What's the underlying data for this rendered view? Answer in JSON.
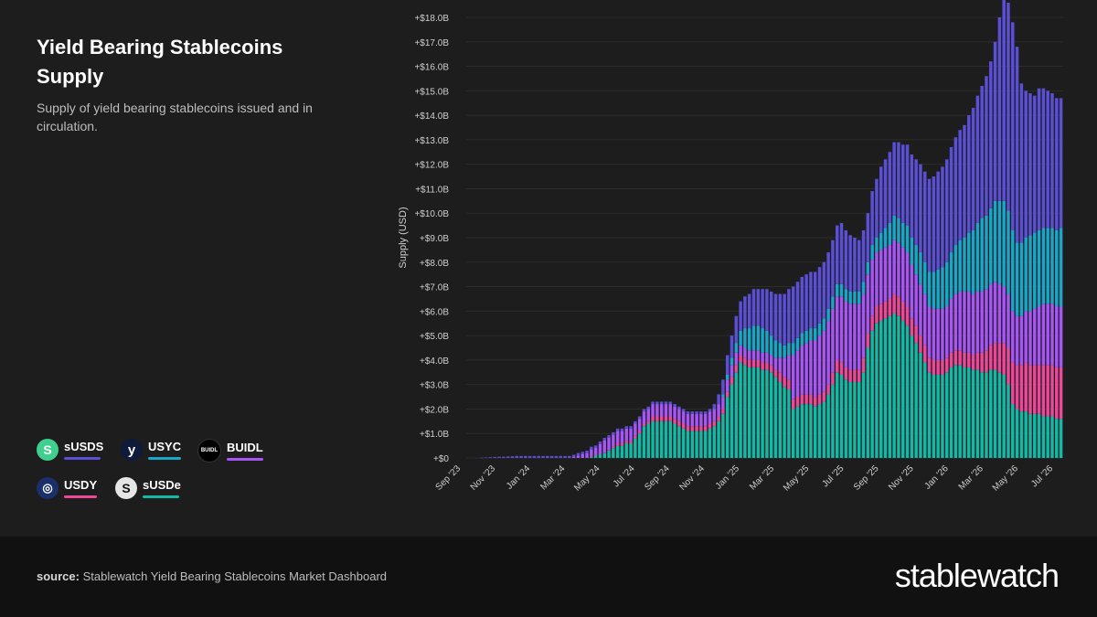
{
  "title": "Yield Bearing Stablecoins Supply",
  "subtitle": "Supply of yield bearing stablecoins issued and in circulation.",
  "legend": [
    {
      "label": "sUSDS",
      "icon": "susds-icon",
      "icon_text": "S",
      "icon_bg": "#3fcf8e",
      "color": "#5b4fd6"
    },
    {
      "label": "USYC",
      "icon": "usyc-icon",
      "icon_text": "y",
      "icon_bg": "#0e1b3a",
      "color": "#1aa6c8"
    },
    {
      "label": "BUIDL",
      "icon": "buidl-icon",
      "icon_text": "BUIDL",
      "icon_bg": "#000000",
      "color": "#a855f7"
    },
    {
      "label": "USDY",
      "icon": "usdy-icon",
      "icon_text": "◎",
      "icon_bg": "#1b2f6b",
      "color": "#ec4899"
    },
    {
      "label": "sUSDe",
      "icon": "susde-icon",
      "icon_text": "S",
      "icon_bg": "#e5e5e5",
      "color": "#14b8a6"
    }
  ],
  "footer": {
    "source_label": "source:",
    "source_text": "Stablewatch Yield Bearing Stablecoins Market Dashboard",
    "brand": "stablewatch"
  },
  "chart_data": {
    "type": "bar",
    "stacked": true,
    "ylabel": "Supply (USD)",
    "ylim": [
      0,
      18
    ],
    "yunit": "B",
    "yticks": [
      "+$0",
      "+$1.0B",
      "+$2.0B",
      "+$3.0B",
      "+$4.0B",
      "+$5.0B",
      "+$6.0B",
      "+$7.0B",
      "+$8.0B",
      "+$9.0B",
      "+$10.0B",
      "+$11.0B",
      "+$12.0B",
      "+$13.0B",
      "+$14.0B",
      "+$15.0B",
      "+$16.0B",
      "+$17.0B",
      "+$18.0B"
    ],
    "xticks": [
      "Sep '23",
      "Nov '23",
      "Jan '24",
      "Mar '24",
      "May '24",
      "Jul '24",
      "Sep '24",
      "Nov '24",
      "Jan '25",
      "Mar '25",
      "May '25",
      "Jul '25",
      "Sep '25",
      "Nov '25",
      "Jan '26",
      "Mar '26",
      "May '26",
      "Jul '26"
    ],
    "grid": true,
    "series_order": [
      "sUSDe",
      "USDY",
      "BUIDL",
      "USYC",
      "sUSDS"
    ],
    "series": {
      "sUSDe": [
        0,
        0,
        0,
        0,
        0,
        0,
        0,
        0,
        0,
        0,
        0,
        0,
        0,
        0,
        0,
        0,
        0,
        0,
        0,
        0,
        0,
        0,
        0,
        0,
        0,
        0,
        0,
        0,
        0.05,
        0.1,
        0.15,
        0.2,
        0.3,
        0.4,
        0.5,
        0.5,
        0.6,
        0.6,
        0.8,
        1.0,
        1.3,
        1.4,
        1.5,
        1.5,
        1.5,
        1.5,
        1.5,
        1.4,
        1.3,
        1.2,
        1.1,
        1.1,
        1.1,
        1.1,
        1.1,
        1.2,
        1.3,
        1.5,
        1.8,
        2.5,
        3.0,
        3.5,
        3.9,
        3.8,
        3.7,
        3.7,
        3.7,
        3.6,
        3.6,
        3.5,
        3.3,
        3.1,
        2.9,
        2.8,
        2.0,
        2.1,
        2.2,
        2.2,
        2.2,
        2.1,
        2.2,
        2.3,
        2.6,
        3.0,
        3.5,
        3.4,
        3.2,
        3.1,
        3.1,
        3.1,
        3.5,
        4.5,
        5.2,
        5.5,
        5.6,
        5.7,
        5.8,
        5.9,
        5.8,
        5.6,
        5.4,
        5.0,
        4.7,
        4.3,
        3.9,
        3.5,
        3.4,
        3.4,
        3.4,
        3.5,
        3.7,
        3.8,
        3.8,
        3.7,
        3.7,
        3.6,
        3.6,
        3.5,
        3.5,
        3.6,
        3.6,
        3.5,
        3.4,
        3.0,
        2.2,
        2.0,
        1.9,
        1.9,
        1.8,
        1.8,
        1.8,
        1.7,
        1.7,
        1.7,
        1.6,
        1.6
      ],
      "USDY": [
        0,
        0,
        0,
        0,
        0,
        0,
        0,
        0,
        0,
        0,
        0,
        0,
        0,
        0,
        0,
        0,
        0,
        0,
        0,
        0,
        0,
        0,
        0,
        0,
        0,
        0,
        0,
        0,
        0.01,
        0.01,
        0.02,
        0.02,
        0.03,
        0.05,
        0.1,
        0.1,
        0.1,
        0.1,
        0.1,
        0.1,
        0.1,
        0.1,
        0.2,
        0.2,
        0.2,
        0.2,
        0.2,
        0.2,
        0.2,
        0.2,
        0.2,
        0.2,
        0.2,
        0.2,
        0.2,
        0.2,
        0.2,
        0.2,
        0.2,
        0.2,
        0.3,
        0.3,
        0.3,
        0.3,
        0.3,
        0.3,
        0.3,
        0.3,
        0.3,
        0.3,
        0.3,
        0.4,
        0.4,
        0.4,
        0.4,
        0.4,
        0.4,
        0.4,
        0.4,
        0.4,
        0.4,
        0.4,
        0.4,
        0.5,
        0.5,
        0.5,
        0.5,
        0.5,
        0.5,
        0.5,
        0.6,
        0.6,
        0.6,
        0.7,
        0.7,
        0.7,
        0.7,
        0.8,
        0.8,
        0.8,
        0.8,
        0.7,
        0.7,
        0.7,
        0.7,
        0.6,
        0.6,
        0.6,
        0.6,
        0.6,
        0.6,
        0.6,
        0.6,
        0.6,
        0.6,
        0.6,
        0.7,
        0.8,
        0.9,
        1.0,
        1.1,
        1.2,
        1.3,
        1.5,
        1.7,
        1.8,
        1.9,
        2.0,
        2.0,
        2.0,
        2.0,
        2.1,
        2.1,
        2.1,
        2.1,
        2.1
      ],
      "BUIDL": [
        0,
        0,
        0,
        0,
        0,
        0,
        0,
        0,
        0,
        0,
        0,
        0,
        0,
        0,
        0,
        0,
        0,
        0,
        0,
        0,
        0,
        0,
        0,
        0,
        0.05,
        0.1,
        0.15,
        0.2,
        0.3,
        0.3,
        0.4,
        0.5,
        0.5,
        0.5,
        0.5,
        0.5,
        0.5,
        0.5,
        0.5,
        0.5,
        0.5,
        0.5,
        0.5,
        0.5,
        0.5,
        0.5,
        0.5,
        0.5,
        0.5,
        0.5,
        0.5,
        0.5,
        0.5,
        0.5,
        0.5,
        0.5,
        0.5,
        0.5,
        0.5,
        0.5,
        0.5,
        0.5,
        0.4,
        0.4,
        0.4,
        0.4,
        0.4,
        0.4,
        0.4,
        0.4,
        0.5,
        0.6,
        0.8,
        1.0,
        1.8,
        1.9,
        2.0,
        2.1,
        2.2,
        2.3,
        2.4,
        2.5,
        2.6,
        2.6,
        2.6,
        2.7,
        2.7,
        2.7,
        2.7,
        2.7,
        2.6,
        2.4,
        2.3,
        2.2,
        2.2,
        2.2,
        2.2,
        2.2,
        2.2,
        2.2,
        2.2,
        2.2,
        2.1,
        2.1,
        2.1,
        2.1,
        2.1,
        2.1,
        2.1,
        2.1,
        2.2,
        2.3,
        2.4,
        2.5,
        2.5,
        2.5,
        2.5,
        2.5,
        2.5,
        2.5,
        2.5,
        2.4,
        2.3,
        2.2,
        2.1,
        2.0,
        2.0,
        2.1,
        2.2,
        2.3,
        2.4,
        2.5,
        2.5,
        2.5,
        2.5,
        2.5
      ],
      "USYC": [
        0,
        0,
        0,
        0,
        0,
        0,
        0,
        0,
        0,
        0,
        0,
        0,
        0,
        0,
        0,
        0,
        0,
        0,
        0,
        0,
        0,
        0,
        0,
        0,
        0,
        0,
        0,
        0,
        0,
        0,
        0,
        0,
        0,
        0,
        0,
        0,
        0,
        0,
        0,
        0,
        0,
        0,
        0,
        0,
        0,
        0,
        0,
        0,
        0,
        0,
        0,
        0,
        0,
        0,
        0,
        0,
        0,
        0,
        0.1,
        0.2,
        0.3,
        0.4,
        0.6,
        0.8,
        0.9,
        1.0,
        1.0,
        1.0,
        0.9,
        0.8,
        0.7,
        0.6,
        0.5,
        0.5,
        0.5,
        0.5,
        0.5,
        0.5,
        0.5,
        0.5,
        0.5,
        0.5,
        0.5,
        0.5,
        0.5,
        0.5,
        0.5,
        0.5,
        0.5,
        0.5,
        0.5,
        0.5,
        0.6,
        0.6,
        0.7,
        0.8,
        0.9,
        1.0,
        1.0,
        1.0,
        1.1,
        1.1,
        1.2,
        1.3,
        1.3,
        1.4,
        1.5,
        1.6,
        1.7,
        1.8,
        1.9,
        2.0,
        2.1,
        2.2,
        2.4,
        2.6,
        2.8,
        3.0,
        3.0,
        3.1,
        3.3,
        3.4,
        3.5,
        3.4,
        3.3,
        3.0,
        3.0,
        3.0,
        3.1,
        3.1,
        3.1,
        3.1,
        3.1,
        3.1,
        3.1,
        3.2
      ],
      "sUSDS": [
        0,
        0,
        0,
        0.01,
        0.02,
        0.03,
        0.04,
        0.05,
        0.05,
        0.06,
        0.07,
        0.08,
        0.08,
        0.08,
        0.08,
        0.08,
        0.08,
        0.08,
        0.08,
        0.08,
        0.08,
        0.08,
        0.08,
        0.08,
        0.08,
        0.1,
        0.1,
        0.1,
        0.1,
        0.1,
        0.1,
        0.1,
        0.1,
        0.1,
        0.1,
        0.1,
        0.1,
        0.1,
        0.1,
        0.1,
        0.1,
        0.1,
        0.1,
        0.1,
        0.1,
        0.1,
        0.1,
        0.1,
        0.1,
        0.1,
        0.1,
        0.1,
        0.1,
        0.1,
        0.1,
        0.1,
        0.2,
        0.4,
        0.6,
        0.8,
        0.9,
        1.1,
        1.2,
        1.3,
        1.4,
        1.5,
        1.5,
        1.6,
        1.7,
        1.8,
        1.9,
        2.0,
        2.1,
        2.2,
        2.3,
        2.3,
        2.3,
        2.3,
        2.3,
        2.3,
        2.3,
        2.3,
        2.3,
        2.3,
        2.4,
        2.5,
        2.4,
        2.3,
        2.2,
        2.1,
        2.1,
        2.0,
        2.2,
        2.4,
        2.7,
        2.8,
        2.9,
        3.0,
        3.1,
        3.2,
        3.3,
        3.4,
        3.5,
        3.6,
        3.7,
        3.8,
        3.9,
        4.0,
        4.1,
        4.2,
        4.3,
        4.4,
        4.5,
        4.6,
        4.8,
        5.0,
        5.2,
        5.4,
        5.7,
        6.0,
        6.5,
        7.5,
        8.5,
        8.5,
        8.5,
        8.0,
        6.5,
        6.0,
        5.8,
        5.6,
        5.8,
        5.7,
        5.6,
        5.5,
        5.4,
        5.3
      ]
    }
  }
}
